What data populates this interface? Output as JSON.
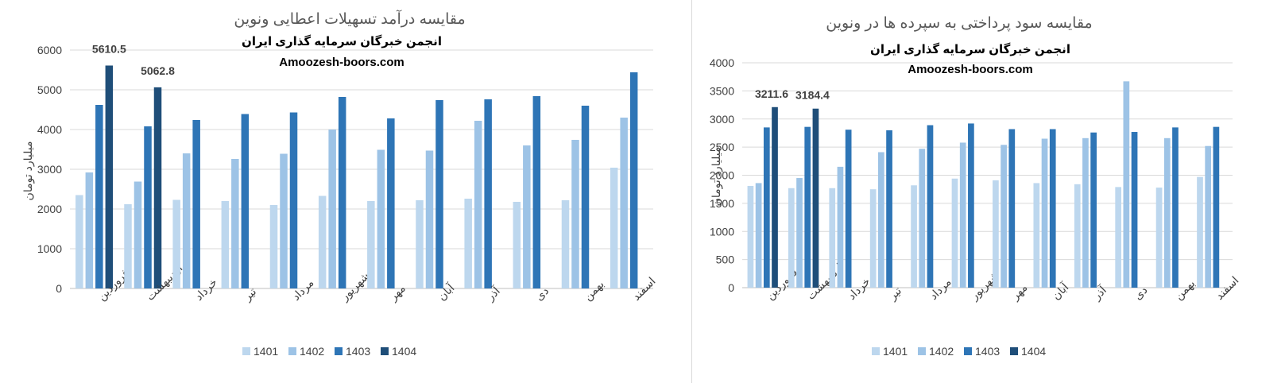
{
  "chart_data": [
    {
      "type": "bar",
      "title": "مقایسه درآمد تسهیلات اعطایی  ونوین",
      "subtitle_1": "انجمن خبرگان سرمایه گذاری ایران",
      "subtitle_2": "Amoozesh-boors.com",
      "ylabel": "میلیارد تومان",
      "ylim": [
        0,
        6000
      ],
      "yticks": [
        "0",
        "1000",
        "2000",
        "3000",
        "4000",
        "5000",
        "6000"
      ],
      "grid": true,
      "legend_position": "bottom",
      "categories": [
        "فروردین",
        "اردیبهشت",
        "خرداد",
        "تیر",
        "مرداد",
        "شهریور",
        "مهر",
        "آبان",
        "آذر",
        "دی",
        "بهمن",
        "اسفند"
      ],
      "series": [
        {
          "name": "1401",
          "color": "#bdd7ee",
          "values": [
            2350,
            2120,
            2230,
            2200,
            2100,
            2330,
            2200,
            2220,
            2260,
            2180,
            2220,
            3040
          ]
        },
        {
          "name": "1402",
          "color": "#9dc3e6",
          "values": [
            2920,
            2690,
            3400,
            3260,
            3390,
            4000,
            3490,
            3470,
            4220,
            3600,
            3740,
            4300
          ]
        },
        {
          "name": "1403",
          "color": "#2e75b6",
          "values": [
            4620,
            4080,
            4240,
            4390,
            4430,
            4820,
            4280,
            4740,
            4760,
            4840,
            4600,
            5440
          ]
        },
        {
          "name": "1404",
          "color": "#1f4e79",
          "values": [
            5610.5,
            5062.8,
            null,
            null,
            null,
            null,
            null,
            null,
            null,
            null,
            null,
            null
          ]
        }
      ],
      "data_labels": [
        "5610.5",
        "5062.8"
      ]
    },
    {
      "type": "bar",
      "title": "مقایسه سود پرداختی به سپرده ها در ونوین",
      "subtitle_1": "انجمن خبرگان سرمایه گذاری ایران",
      "subtitle_2": "Amoozesh-boors.com",
      "ylabel": "میلیارد تومان",
      "ylim": [
        0,
        4000
      ],
      "yticks": [
        "0",
        "500",
        "1000",
        "1500",
        "2000",
        "2500",
        "3000",
        "3500",
        "4000"
      ],
      "grid": true,
      "legend_position": "bottom",
      "categories": [
        "فروردین",
        "اردیبهشت",
        "خرداد",
        "تیر",
        "مرداد",
        "شهریور",
        "مهر",
        "آبان",
        "آذر",
        "دی",
        "بهمن",
        "اسفند"
      ],
      "series": [
        {
          "name": "1401",
          "color": "#bdd7ee",
          "values": [
            1810,
            1770,
            1770,
            1750,
            1820,
            1940,
            1910,
            1860,
            1840,
            1790,
            1780,
            1970
          ]
        },
        {
          "name": "1402",
          "color": "#9dc3e6",
          "values": [
            1860,
            1950,
            2150,
            2410,
            2470,
            2580,
            2540,
            2650,
            2660,
            3670,
            2660,
            2520
          ]
        },
        {
          "name": "1403",
          "color": "#2e75b6",
          "values": [
            2850,
            2860,
            2810,
            2800,
            2890,
            2920,
            2820,
            2820,
            2760,
            2770,
            2850,
            2860
          ]
        },
        {
          "name": "1404",
          "color": "#1f4e79",
          "values": [
            3211.6,
            3184.4,
            null,
            null,
            null,
            null,
            null,
            null,
            null,
            null,
            null,
            null
          ]
        }
      ],
      "data_labels": [
        "3211.6",
        "3184.4"
      ]
    }
  ]
}
